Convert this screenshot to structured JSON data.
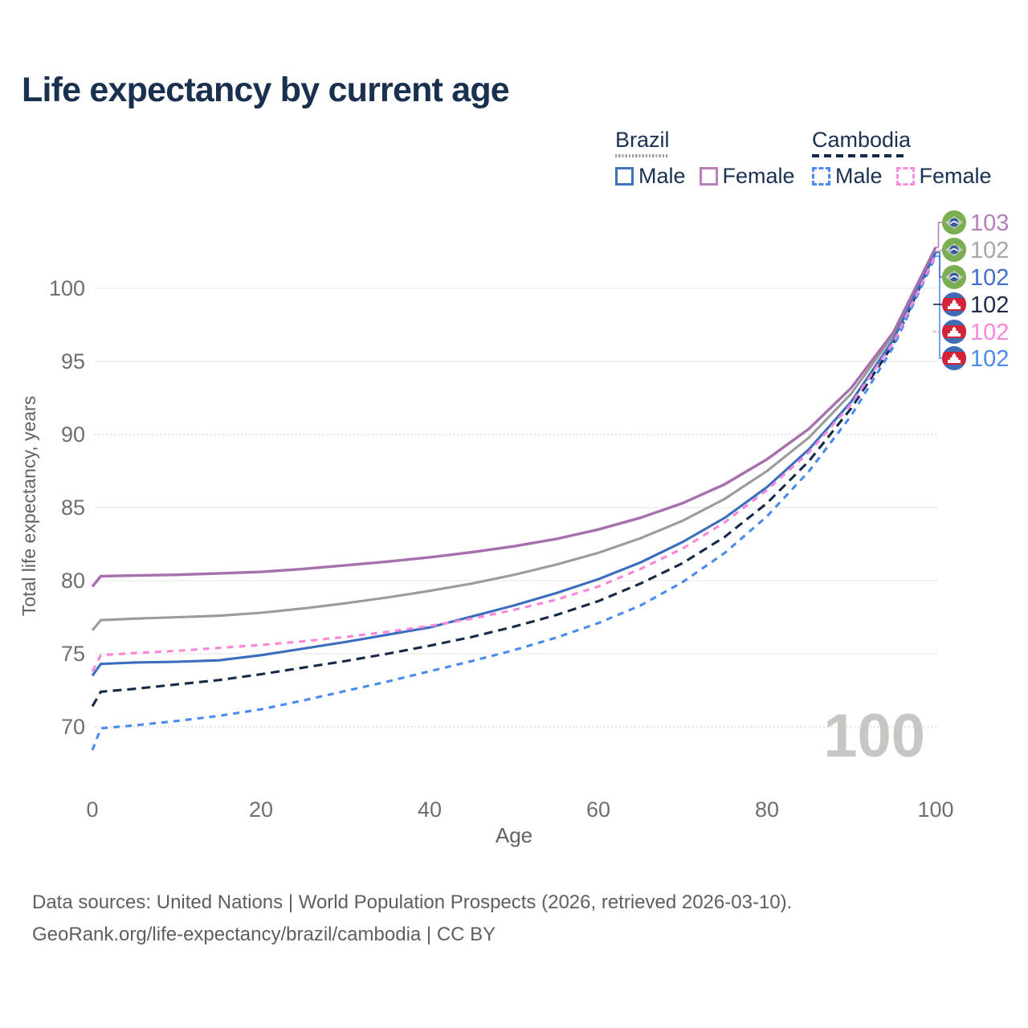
{
  "title": "Life expectancy by current age",
  "legend": {
    "groups": [
      {
        "label": "Brazil",
        "line_style": "solid",
        "underline_color": "#9e9e9e",
        "items": [
          {
            "label": "Male",
            "color": "#4273b8",
            "dashed": false
          },
          {
            "label": "Female",
            "color": "#bc7ebe",
            "dashed": false
          }
        ]
      },
      {
        "label": "Cambodia",
        "line_style": "dashed",
        "underline_color": "#16294a",
        "items": [
          {
            "label": "Male",
            "color": "#4a8bf0",
            "dashed": true
          },
          {
            "label": "Female",
            "color": "#fb8bdd",
            "dashed": true
          }
        ]
      }
    ]
  },
  "chart_data": {
    "type": "line",
    "title": "Life expectancy by current age",
    "xlabel": "Age",
    "ylabel": "Total life expectancy, years",
    "xlim": [
      0,
      100
    ],
    "ylim": [
      67.5,
      103.5
    ],
    "x_ticks": [
      0,
      20,
      40,
      60,
      80,
      100
    ],
    "y_ticks": [
      70,
      75,
      80,
      85,
      90,
      95,
      100
    ],
    "grid": "horizontal",
    "legend_position": "top-right",
    "x": [
      0,
      1,
      5,
      10,
      15,
      20,
      25,
      30,
      35,
      40,
      45,
      50,
      55,
      60,
      65,
      70,
      75,
      80,
      85,
      90,
      95,
      100
    ],
    "series": [
      {
        "id": "brazil-female",
        "name": "Brazil Female",
        "color": "#a76fae",
        "dashed": false,
        "values": [
          79.6,
          80.3,
          80.35,
          80.4,
          80.5,
          80.6,
          80.8,
          81.05,
          81.3,
          81.6,
          81.95,
          82.35,
          82.85,
          83.5,
          84.3,
          85.3,
          86.6,
          88.3,
          90.4,
          93.2,
          97.0,
          102.8
        ]
      },
      {
        "id": "brazil-total",
        "name": "Brazil Total",
        "color": "#9b9b9b",
        "dashed": false,
        "values": [
          76.6,
          77.3,
          77.4,
          77.5,
          77.6,
          77.8,
          78.1,
          78.45,
          78.85,
          79.3,
          79.8,
          80.4,
          81.1,
          81.9,
          82.9,
          84.1,
          85.6,
          87.5,
          89.8,
          92.8,
          96.8,
          102.5
        ]
      },
      {
        "id": "brazil-male",
        "name": "Brazil Male",
        "color": "#3a6dbd",
        "dashed": false,
        "values": [
          73.5,
          74.3,
          74.4,
          74.45,
          74.55,
          74.9,
          75.35,
          75.8,
          76.3,
          76.8,
          77.55,
          78.3,
          79.15,
          80.1,
          81.25,
          82.65,
          84.3,
          86.4,
          89.0,
          92.25,
          96.5,
          102.45
        ]
      },
      {
        "id": "cambodia-total",
        "name": "Cambodia Total",
        "color": "#162a47",
        "dashed": true,
        "values": [
          71.4,
          72.4,
          72.6,
          72.9,
          73.2,
          73.6,
          74.05,
          74.5,
          75.0,
          75.55,
          76.15,
          76.85,
          77.65,
          78.6,
          79.8,
          81.2,
          83.0,
          85.3,
          88.2,
          91.8,
          96.2,
          102.4
        ]
      },
      {
        "id": "cambodia-female",
        "name": "Cambodia Female",
        "color": "#f887d9",
        "dashed": true,
        "values": [
          73.8,
          74.9,
          75.05,
          75.2,
          75.4,
          75.6,
          75.85,
          76.15,
          76.5,
          76.9,
          77.4,
          78.0,
          78.7,
          79.6,
          80.8,
          82.2,
          84.0,
          86.2,
          88.8,
          92.1,
          96.3,
          102.3
        ]
      },
      {
        "id": "cambodia-male",
        "name": "Cambodia Male",
        "color": "#4a8bf0",
        "dashed": true,
        "values": [
          68.4,
          69.9,
          70.1,
          70.4,
          70.75,
          71.2,
          71.8,
          72.45,
          73.1,
          73.8,
          74.5,
          75.25,
          76.1,
          77.1,
          78.3,
          79.9,
          81.9,
          84.4,
          87.5,
          91.3,
          96.0,
          102.2
        ]
      }
    ]
  },
  "end_labels": [
    {
      "value": "103",
      "series": "brazil-female",
      "flag": "brazil",
      "color": "#b57fba"
    },
    {
      "value": "102",
      "series": "brazil-total",
      "flag": "brazil",
      "color": "#a6a6a6"
    },
    {
      "value": "102",
      "series": "brazil-male",
      "flag": "brazil",
      "color": "#3f6fc9"
    },
    {
      "value": "102",
      "series": "cambodia-total",
      "flag": "cambodia",
      "color": "#1d2c49"
    },
    {
      "value": "102",
      "series": "cambodia-female",
      "flag": "cambodia",
      "color": "#f887d9"
    },
    {
      "value": "102",
      "series": "cambodia-male",
      "flag": "cambodia",
      "color": "#4a8bf0"
    }
  ],
  "watermark": "100",
  "footer": {
    "line1": "Data sources: United Nations | World Population Prospects (2026, retrieved 2026-03-10).",
    "line2": "GeoRank.org/life-expectancy/brazil/cambodia | CC BY"
  }
}
